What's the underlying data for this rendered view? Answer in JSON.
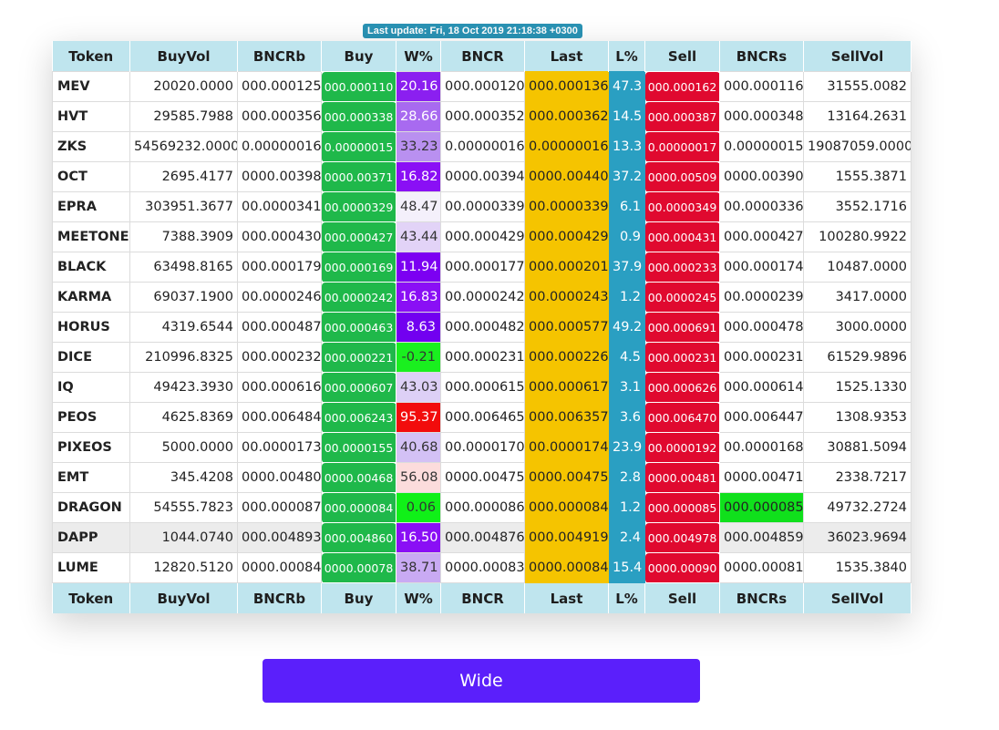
{
  "last_update": "Last update: Fri, 18 Oct 2019 21:18:38 +0300",
  "headers": [
    "Token",
    "BuyVol",
    "BNCRb",
    "Buy",
    "W%",
    "BNCR",
    "Last",
    "L%",
    "Sell",
    "BNCRs",
    "SellVol"
  ],
  "rows": [
    {
      "token": "MEV",
      "buyvol": "20020.0000",
      "bncrb": "000.000125",
      "buy": "000.000110",
      "w": "20.16",
      "w_bg": "#8b1ff0",
      "w_fg": "#ffffff",
      "bncr": "000.000120",
      "last": "000.000136",
      "l": "47.3",
      "sell": "000.000162",
      "bncrs": "000.000116",
      "sellvol": "31555.0082"
    },
    {
      "token": "HVT",
      "buyvol": "29585.7988",
      "bncrb": "000.000356",
      "buy": "000.000338",
      "w": "28.66",
      "w_bg": "#a86af0",
      "w_fg": "#ffffff",
      "bncr": "000.000352",
      "last": "000.000362",
      "l": "14.5",
      "sell": "000.000387",
      "bncrs": "000.000348",
      "sellvol": "13164.2631"
    },
    {
      "token": "ZKS",
      "buyvol": "54569232.0000",
      "bncrb": "0.00000016",
      "buy": "0.00000015",
      "w": "33.23",
      "w_bg": "#b990f0",
      "w_fg": "#333333",
      "bncr": "0.00000016",
      "last": "0.00000016",
      "l": "13.3",
      "sell": "0.00000017",
      "bncrs": "0.00000015",
      "sellvol": "19087059.0000"
    },
    {
      "token": "OCT",
      "buyvol": "2695.4177",
      "bncrb": "0000.00398",
      "buy": "0000.00371",
      "w": "16.82",
      "w_bg": "#8a0ff5",
      "w_fg": "#ffffff",
      "bncr": "0000.00394",
      "last": "0000.00440",
      "l": "37.2",
      "sell": "0000.00509",
      "bncrs": "0000.00390",
      "sellvol": "1555.3871"
    },
    {
      "token": "EPRA",
      "buyvol": "303951.3677",
      "bncrb": "00.0000341",
      "buy": "00.0000329",
      "w": "48.47",
      "w_bg": "#f4f0fb",
      "w_fg": "#333333",
      "bncr": "00.0000339",
      "last": "00.0000339",
      "l": "6.1",
      "sell": "00.0000349",
      "bncrs": "00.0000336",
      "sellvol": "3552.1716"
    },
    {
      "token": "MEETONE",
      "buyvol": "7388.3909",
      "bncrb": "000.000430",
      "buy": "000.000427",
      "w": "43.44",
      "w_bg": "#e2d3f7",
      "w_fg": "#333333",
      "bncr": "000.000429",
      "last": "000.000429",
      "l": "0.9",
      "sell": "000.000431",
      "bncrs": "000.000427",
      "sellvol": "100280.9922"
    },
    {
      "token": "BLACK",
      "buyvol": "63498.8165",
      "bncrb": "000.000179",
      "buy": "000.000169",
      "w": "11.94",
      "w_bg": "#7c00f2",
      "w_fg": "#ffffff",
      "bncr": "000.000177",
      "last": "000.000201",
      "l": "37.9",
      "sell": "000.000233",
      "bncrs": "000.000174",
      "sellvol": "10487.0000"
    },
    {
      "token": "KARMA",
      "buyvol": "69037.1900",
      "bncrb": "00.0000246",
      "buy": "00.0000242",
      "w": "16.83",
      "w_bg": "#8a0ff5",
      "w_fg": "#ffffff",
      "bncr": "00.0000242",
      "last": "00.0000243",
      "l": "1.2",
      "sell": "00.0000245",
      "bncrs": "00.0000239",
      "sellvol": "3417.0000"
    },
    {
      "token": "HORUS",
      "buyvol": "4319.6544",
      "bncrb": "000.000487",
      "buy": "000.000463",
      "w": "8.63",
      "w_bg": "#7200f0",
      "w_fg": "#ffffff",
      "bncr": "000.000482",
      "last": "000.000577",
      "l": "49.2",
      "sell": "000.000691",
      "bncrs": "000.000478",
      "sellvol": "3000.0000"
    },
    {
      "token": "DICE",
      "buyvol": "210996.8325",
      "bncrb": "000.000232",
      "buy": "000.000221",
      "w": "-0.21",
      "w_bg": "#1aef1f",
      "w_fg": "#333333",
      "bncr": "000.000231",
      "last": "000.000226",
      "l": "4.5",
      "sell": "000.000231",
      "bncrs": "000.000231",
      "sellvol": "61529.9896"
    },
    {
      "token": "IQ",
      "buyvol": "49423.3930",
      "bncrb": "000.000616",
      "buy": "000.000607",
      "w": "43.03",
      "w_bg": "#ddd0f6",
      "w_fg": "#333333",
      "bncr": "000.000615",
      "last": "000.000617",
      "l": "3.1",
      "sell": "000.000626",
      "bncrs": "000.000614",
      "sellvol": "1525.1330"
    },
    {
      "token": "PEOS",
      "buyvol": "4625.8369",
      "bncrb": "000.006484",
      "buy": "000.006243",
      "w": "95.37",
      "w_bg": "#f20c0c",
      "w_fg": "#ffffff",
      "bncr": "000.006465",
      "last": "000.006357",
      "l": "3.6",
      "sell": "000.006470",
      "bncrs": "000.006447",
      "sellvol": "1308.9353"
    },
    {
      "token": "PIXEOS",
      "buyvol": "5000.0000",
      "bncrb": "00.0000173",
      "buy": "00.0000155",
      "w": "40.68",
      "w_bg": "#d3c1f5",
      "w_fg": "#333333",
      "bncr": "00.0000170",
      "last": "00.0000174",
      "l": "23.9",
      "sell": "00.0000192",
      "bncrs": "00.0000168",
      "sellvol": "30881.5094"
    },
    {
      "token": "EMT",
      "buyvol": "345.4208",
      "bncrb": "0000.00480",
      "buy": "0000.00468",
      "w": "56.08",
      "w_bg": "#fcdcdc",
      "w_fg": "#333333",
      "bncr": "0000.00475",
      "last": "0000.00475",
      "l": "2.8",
      "sell": "0000.00481",
      "bncrs": "0000.00471",
      "sellvol": "2338.7217"
    },
    {
      "token": "DRAGON",
      "buyvol": "54555.7823",
      "bncrb": "000.000087",
      "buy": "000.000084",
      "w": "0.06",
      "w_bg": "#10f018",
      "w_fg": "#333333",
      "bncr": "000.000086",
      "last": "000.000084",
      "l": "1.2",
      "sell": "000.000085",
      "bncrs": "000.000085",
      "bncrs_hl": true,
      "sellvol": "49732.2724"
    },
    {
      "token": "DAPP",
      "buyvol": "1044.0740",
      "bncrb": "000.004893",
      "buy": "000.004860",
      "w": "16.50",
      "w_bg": "#8a0ff5",
      "w_fg": "#ffffff",
      "bncr": "000.004876",
      "last": "000.004919",
      "l": "2.4",
      "sell": "000.004978",
      "bncrs": "000.004859",
      "sellvol": "36023.9694",
      "highlight": true
    },
    {
      "token": "LUME",
      "buyvol": "12820.5120",
      "bncrb": "0000.00084",
      "buy": "0000.00078",
      "w": "38.71",
      "w_bg": "#c9aaf3",
      "w_fg": "#333333",
      "bncr": "0000.00083",
      "last": "0000.00084",
      "l": "15.4",
      "sell": "0000.00090",
      "bncrs": "0000.00081",
      "sellvol": "1535.3840"
    }
  ],
  "wide_button": "Wide"
}
